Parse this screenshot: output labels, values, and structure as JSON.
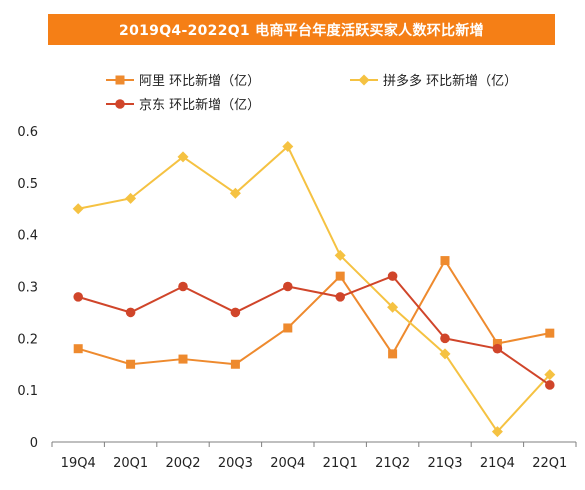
{
  "title": "2019Q4-2022Q1 电商平台年度活跃买家人数环比新增",
  "chart_data": {
    "type": "line",
    "title": "2019Q4-2022Q1 电商平台年度活跃买家人数环比新增",
    "categories": [
      "19Q4",
      "20Q1",
      "20Q2",
      "20Q3",
      "20Q4",
      "21Q1",
      "21Q2",
      "21Q3",
      "21Q4",
      "22Q1"
    ],
    "yticks": [
      "0",
      "0.1",
      "0.2",
      "0.3",
      "0.4",
      "0.5",
      "0.6"
    ],
    "ylim": [
      0,
      0.6
    ],
    "grid": false,
    "legend_position": "top",
    "series": [
      {
        "name": "阿里  环比新增（亿）",
        "color": "#ee8a2e",
        "marker": "square",
        "values": [
          0.18,
          0.15,
          0.16,
          0.15,
          0.22,
          0.32,
          0.17,
          0.35,
          0.19,
          0.21
        ]
      },
      {
        "name": "拼多多  环比新增（亿）",
        "color": "#f5c242",
        "marker": "diamond",
        "values": [
          0.45,
          0.47,
          0.55,
          0.48,
          0.57,
          0.36,
          0.26,
          0.17,
          0.02,
          0.13
        ]
      },
      {
        "name": "京东  环比新增（亿）",
        "color": "#d0452a",
        "marker": "circle",
        "values": [
          0.28,
          0.25,
          0.3,
          0.25,
          0.3,
          0.28,
          0.32,
          0.2,
          0.18,
          0.11
        ]
      }
    ]
  }
}
